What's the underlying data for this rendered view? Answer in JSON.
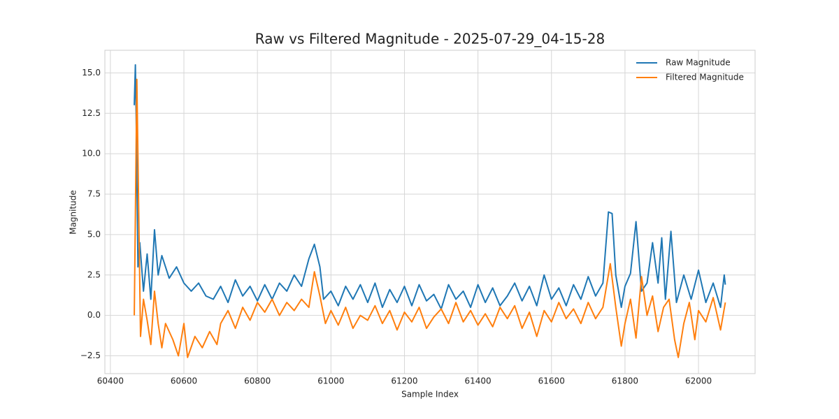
{
  "chart_data": {
    "type": "line",
    "title": "Raw vs Filtered Magnitude - 2025-07-29_04-15-28",
    "xlabel": "Sample Index",
    "ylabel": "Magnitude",
    "xlim": [
      60385,
      62154
    ],
    "ylim": [
      -3.6,
      16.4
    ],
    "xticks": [
      60400,
      60600,
      60800,
      61000,
      61200,
      61400,
      61600,
      61800,
      62000
    ],
    "yticks": [
      {
        "value": -2.5,
        "label": "−2.5"
      },
      {
        "value": 0,
        "label": "0.0"
      },
      2.5,
      {
        "value": 5,
        "label": "5.0"
      },
      7.5,
      {
        "value": 10,
        "label": "10.0"
      },
      12.5,
      {
        "value": 15,
        "label": "15.0"
      }
    ],
    "grid": true,
    "legend": "upper right",
    "series": [
      {
        "name": "Raw Magnitude",
        "color": "#1f77b4",
        "x": [
          60465,
          60468,
          60470,
          60475,
          60480,
          60490,
          60500,
          60510,
          60520,
          60530,
          60540,
          60560,
          60580,
          60600,
          60620,
          60640,
          60660,
          60680,
          60700,
          60720,
          60740,
          60760,
          60780,
          60800,
          60820,
          60840,
          60860,
          60880,
          60900,
          60920,
          60940,
          60955,
          60970,
          60980,
          61000,
          61020,
          61040,
          61060,
          61080,
          61100,
          61120,
          61140,
          61160,
          61180,
          61200,
          61220,
          61240,
          61260,
          61280,
          61300,
          61320,
          61340,
          61360,
          61380,
          61400,
          61420,
          61440,
          61460,
          61480,
          61500,
          61520,
          61540,
          61560,
          61580,
          61600,
          61620,
          61640,
          61660,
          61680,
          61700,
          61720,
          61740,
          61755,
          61765,
          61775,
          61790,
          61800,
          61815,
          61830,
          61845,
          61860,
          61875,
          61890,
          61900,
          61910,
          61925,
          61940,
          61960,
          61980,
          62000,
          62020,
          62040,
          62060,
          62070,
          62073
        ],
        "values": [
          13.0,
          15.5,
          12.5,
          3.0,
          4.5,
          1.5,
          3.8,
          1.0,
          5.3,
          2.5,
          3.7,
          2.3,
          3.0,
          2.0,
          1.5,
          2.0,
          1.2,
          1.0,
          1.8,
          0.8,
          2.2,
          1.2,
          1.8,
          0.9,
          1.9,
          1.0,
          2.0,
          1.5,
          2.5,
          1.8,
          3.5,
          4.4,
          3.0,
          1.0,
          1.5,
          0.6,
          1.8,
          1.0,
          1.9,
          0.8,
          2.0,
          0.5,
          1.6,
          0.8,
          1.8,
          0.6,
          1.9,
          0.9,
          1.3,
          0.4,
          1.9,
          1.0,
          1.5,
          0.5,
          1.9,
          0.8,
          1.7,
          0.6,
          1.2,
          2.0,
          0.9,
          1.8,
          0.6,
          2.5,
          1.0,
          1.7,
          0.6,
          1.9,
          1.0,
          2.4,
          1.2,
          2.0,
          6.4,
          6.3,
          2.5,
          0.5,
          1.8,
          2.6,
          5.8,
          1.5,
          2.0,
          4.5,
          2.0,
          4.8,
          1.0,
          5.2,
          0.8,
          2.5,
          1.0,
          2.8,
          0.8,
          2.0,
          0.5,
          2.5,
          1.9
        ]
      },
      {
        "name": "Filtered Magnitude",
        "color": "#ff7f0e",
        "x": [
          60465,
          60472,
          60478,
          60482,
          60490,
          60500,
          60510,
          60520,
          60530,
          60540,
          60550,
          60570,
          60585,
          60600,
          60610,
          60630,
          60650,
          60670,
          60690,
          60700,
          60720,
          60740,
          60760,
          60780,
          60800,
          60820,
          60840,
          60860,
          60880,
          60900,
          60920,
          60940,
          60955,
          60970,
          60985,
          61000,
          61020,
          61040,
          61060,
          61080,
          61100,
          61120,
          61140,
          61160,
          61180,
          61200,
          61220,
          61240,
          61260,
          61280,
          61300,
          61320,
          61340,
          61360,
          61380,
          61400,
          61420,
          61440,
          61460,
          61480,
          61500,
          61520,
          61540,
          61560,
          61580,
          61600,
          61620,
          61640,
          61660,
          61680,
          61700,
          61720,
          61740,
          61760,
          61775,
          61790,
          61800,
          61815,
          61830,
          61845,
          61860,
          61875,
          61890,
          61905,
          61920,
          61935,
          61945,
          61960,
          61975,
          61990,
          62000,
          62020,
          62040,
          62060,
          62073
        ],
        "values": [
          0.0,
          14.6,
          5.0,
          -1.3,
          1.0,
          -0.3,
          -1.8,
          1.5,
          -0.5,
          -2.0,
          -0.5,
          -1.5,
          -2.5,
          -0.5,
          -2.6,
          -1.3,
          -2.0,
          -1.0,
          -1.8,
          -0.5,
          0.3,
          -0.8,
          0.5,
          -0.3,
          0.8,
          0.2,
          1.0,
          0.0,
          0.8,
          0.3,
          1.0,
          0.5,
          2.7,
          1.2,
          -0.5,
          0.3,
          -0.6,
          0.5,
          -0.8,
          0.0,
          -0.3,
          0.6,
          -0.5,
          0.3,
          -0.9,
          0.2,
          -0.4,
          0.5,
          -0.8,
          -0.1,
          0.4,
          -0.5,
          0.8,
          -0.4,
          0.3,
          -0.6,
          0.1,
          -0.7,
          0.5,
          -0.2,
          0.6,
          -0.8,
          0.2,
          -1.3,
          0.3,
          -0.4,
          0.8,
          -0.2,
          0.4,
          -0.5,
          0.8,
          -0.2,
          0.5,
          3.2,
          0.5,
          -1.9,
          -0.5,
          1.0,
          -1.4,
          2.4,
          0.0,
          1.2,
          -1.0,
          0.5,
          1.0,
          -1.5,
          -2.6,
          -0.5,
          0.8,
          -1.5,
          0.3,
          -0.4,
          1.1,
          -0.9,
          0.8
        ]
      }
    ]
  }
}
